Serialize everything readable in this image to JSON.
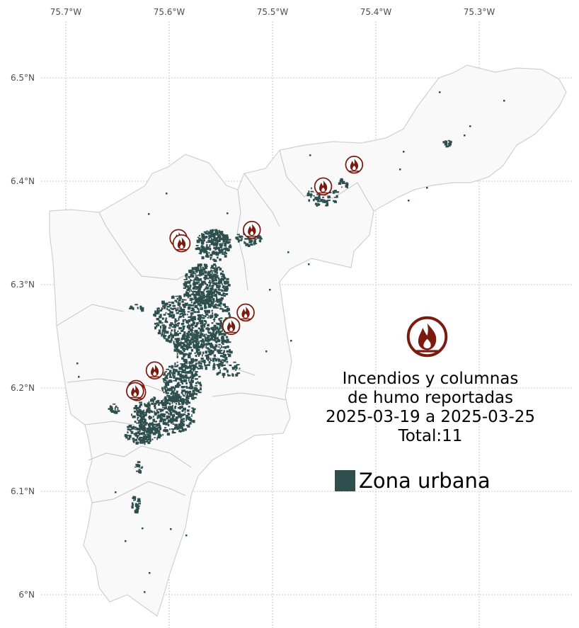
{
  "axes": {
    "x_ticks": [
      "75.7°W",
      "75.6°W",
      "75.5°W",
      "75.4°W",
      "75.3°W"
    ],
    "y_ticks": [
      "6.5°N",
      "6.4°N",
      "6.3°N",
      "6.2°N",
      "6.1°N",
      "6°N"
    ]
  },
  "legend": {
    "title_lines": [
      "Incendios y columnas",
      "de humo reportadas",
      "2025-03-19 a 2025-03-25",
      "Total:11"
    ],
    "urban_label": "Zona urbana",
    "fire_icon": "fire-icon"
  },
  "colors": {
    "urban": "#2f4f4f",
    "fire": "#7b1a0f",
    "municipality_fill": "#f7f7f7",
    "boundary": "#c8c8c8",
    "grid": "#bdbdbd"
  },
  "fires": [
    {
      "lon": -75.591,
      "lat": 6.345
    },
    {
      "lon": -75.588,
      "lat": 6.34
    },
    {
      "lon": -75.52,
      "lat": 6.353
    },
    {
      "lon": -75.451,
      "lat": 6.395
    },
    {
      "lon": -75.421,
      "lat": 6.416
    },
    {
      "lon": -75.526,
      "lat": 6.273
    },
    {
      "lon": -75.54,
      "lat": 6.26
    },
    {
      "lon": -75.614,
      "lat": 6.217
    },
    {
      "lon": -75.632,
      "lat": 6.199
    },
    {
      "lon": -75.631,
      "lat": 6.196
    },
    {
      "lon": -75.633,
      "lat": 6.197
    }
  ]
}
